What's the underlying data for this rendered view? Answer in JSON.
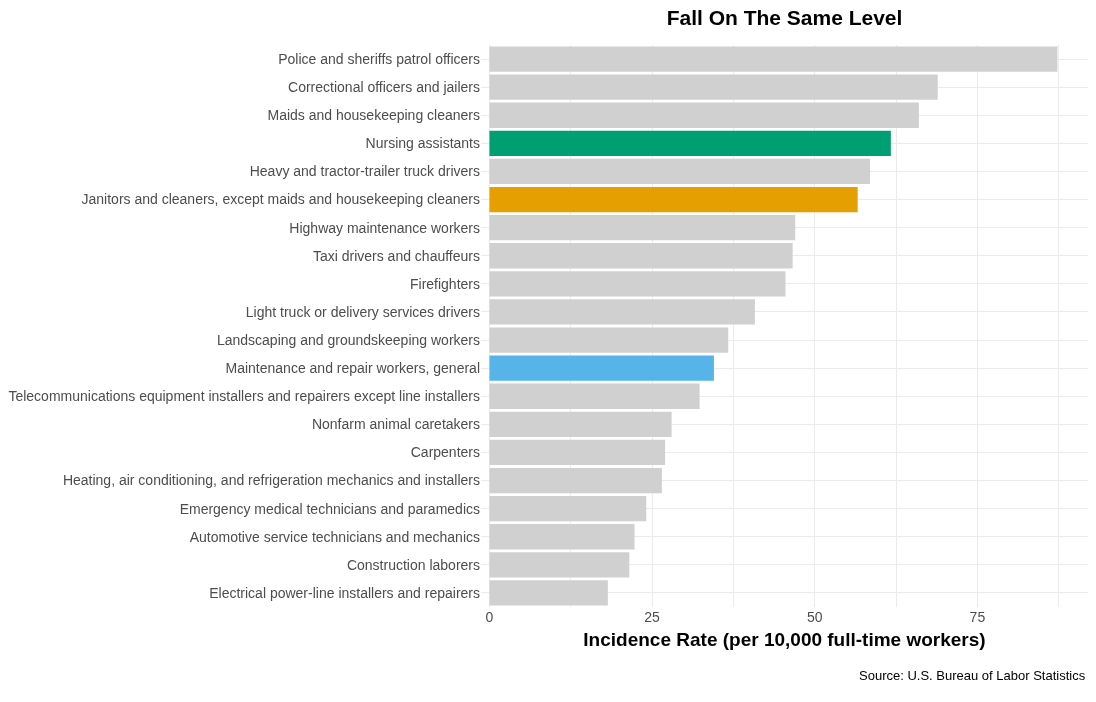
{
  "chart_data": {
    "type": "bar",
    "orientation": "horizontal",
    "title": "Fall On The Same Level",
    "xlabel": "Incidence Rate (per 10,000 full-time workers)",
    "annotations": [
      "Source: U.S. Bureau of Labor Statistics"
    ],
    "categories": [
      "Police and sheriffs patrol officers",
      "Correctional officers and jailers",
      "Maids and housekeeping cleaners",
      "Nursing assistants",
      "Heavy and tractor-trailer truck drivers",
      "Janitors and cleaners, except maids and housekeeping cleaners",
      "Highway maintenance workers",
      "Taxi drivers and chauffeurs",
      "Firefighters",
      "Light truck or delivery services drivers",
      "Landscaping and groundskeeping workers",
      "Maintenance and repair workers, general",
      "Telecommunications equipment installers and repairers except line installers",
      "Nonfarm animal caretakers",
      "Carpenters",
      "Heating, air conditioning, and refrigeration mechanics and installers",
      "Emergency medical technicians and paramedics",
      "Automotive service technicians and mechanics",
      "Construction laborers",
      "Electrical power-line installers and repairers"
    ],
    "values": [
      87.3,
      68.9,
      66.0,
      61.7,
      58.5,
      56.6,
      47.0,
      46.6,
      45.5,
      40.8,
      36.7,
      34.5,
      32.3,
      28.0,
      27.0,
      26.5,
      24.1,
      22.3,
      21.5,
      18.2
    ],
    "colors": [
      "#d0d0d0",
      "#d0d0d0",
      "#d0d0d0",
      "#009e73",
      "#d0d0d0",
      "#e69f00",
      "#d0d0d0",
      "#d0d0d0",
      "#d0d0d0",
      "#d0d0d0",
      "#d0d0d0",
      "#56b4e9",
      "#d0d0d0",
      "#d0d0d0",
      "#d0d0d0",
      "#d0d0d0",
      "#d0d0d0",
      "#d0d0d0",
      "#d0d0d0",
      "#d0d0d0"
    ],
    "xlim": [
      -1.3,
      92
    ],
    "xticks": [
      0,
      {
        "value": 12.5,
        "label": null
      },
      25,
      {
        "value": 37.5,
        "label": null
      },
      50,
      {
        "value": 62.5,
        "label": null
      },
      75,
      {
        "value": 87.5,
        "label": null
      }
    ],
    "grid": true,
    "legend": false
  }
}
